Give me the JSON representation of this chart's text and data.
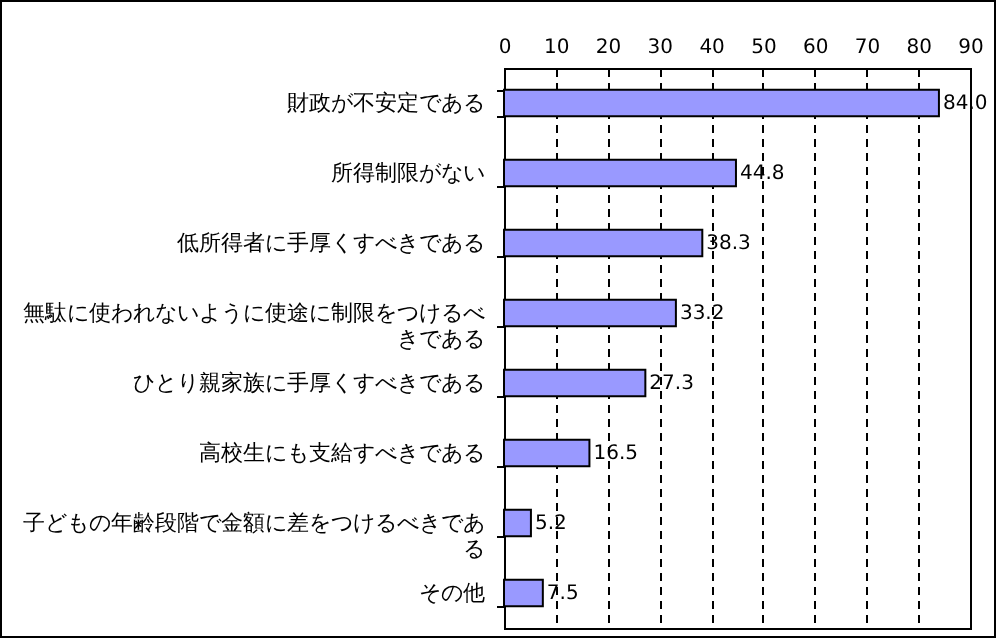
{
  "chart_data": {
    "type": "bar",
    "orientation": "horizontal",
    "categories": [
      "財政が不安定である",
      "所得制限がない",
      "低所得者に手厚くすべきである",
      "無駄に使われないように使途に制限をつけるべきである",
      "ひとり親家族に手厚くすべきである",
      "高校生にも支給すべきである",
      "子どもの年齢段階で金額に差をつけるべきである",
      "その他"
    ],
    "values": [
      84.0,
      44.8,
      38.3,
      33.2,
      27.3,
      16.5,
      5.2,
      7.5
    ],
    "value_labels": [
      "84.0",
      "44.8",
      "38.3",
      "33.2",
      "27.3",
      "16.5",
      "5.2",
      "7.5"
    ],
    "color": "#9999ff",
    "xlim": [
      0,
      90
    ],
    "xticks": [
      0,
      10,
      20,
      30,
      40,
      50,
      60,
      70,
      80,
      90
    ],
    "grid": "x"
  }
}
